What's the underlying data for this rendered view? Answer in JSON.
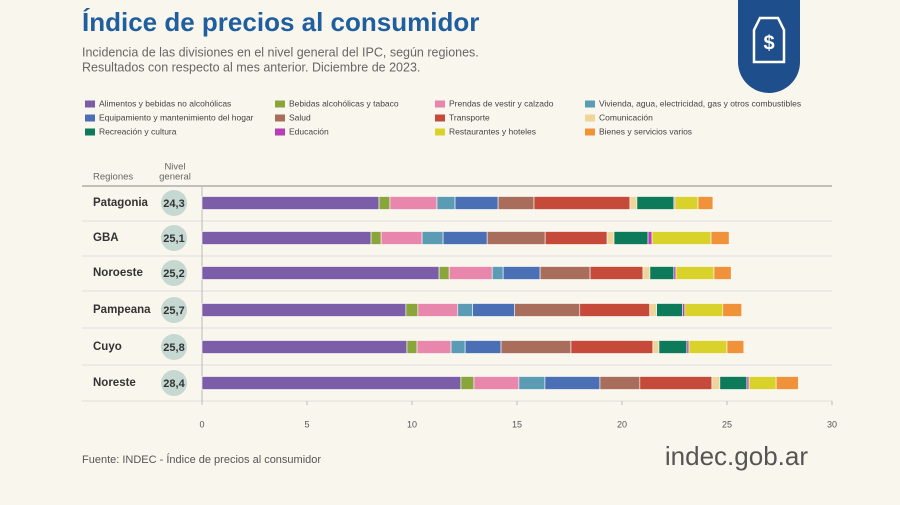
{
  "chart_data": {
    "type": "stacked_bar_horizontal",
    "title": "Índice de precios al consumidor",
    "subtitle": [
      "Incidencia de las divisiones en el nivel general del IPC, según regiones.",
      "Resultados con respecto al mes anterior. Diciembre de 2023."
    ],
    "column_headers": {
      "region": "Regiones",
      "total": [
        "Nivel",
        "general"
      ]
    },
    "categories": [
      "Patagonia",
      "GBA",
      "Noroeste",
      "Pampeana",
      "Cuyo",
      "Noreste"
    ],
    "totals": [
      24.3,
      25.1,
      25.2,
      25.7,
      25.8,
      28.4
    ],
    "total_labels": [
      "24,3",
      "25,1",
      "25,2",
      "25,7",
      "25,8",
      "28,4"
    ],
    "series": [
      {
        "name": "Alimentos y bebidas no alcohólicas",
        "color": "#7b5ea7",
        "values": [
          8.43,
          8.05,
          11.29,
          9.71,
          9.76,
          12.33
        ]
      },
      {
        "name": "Bebidas alcohólicas y tabaco",
        "color": "#8aa63a",
        "values": [
          0.52,
          0.48,
          0.48,
          0.57,
          0.48,
          0.62
        ]
      },
      {
        "name": "Prendas de vestir y calzado",
        "color": "#e986ac",
        "values": [
          2.24,
          1.95,
          2.05,
          1.9,
          1.62,
          2.14
        ]
      },
      {
        "name": "Vivienda, agua, electricidad, gas y otros combustibles",
        "color": "#5b9cb4",
        "values": [
          0.86,
          1.0,
          0.52,
          0.71,
          0.67,
          1.24
        ]
      },
      {
        "name": "Equipamiento y mantenimiento del hogar",
        "color": "#4a6fb5",
        "values": [
          2.05,
          2.1,
          1.76,
          2.0,
          1.71,
          2.62
        ]
      },
      {
        "name": "Salud",
        "color": "#a96e5b",
        "values": [
          1.71,
          2.76,
          2.38,
          3.1,
          3.33,
          1.9
        ]
      },
      {
        "name": "Transporte",
        "color": "#c54a3a",
        "values": [
          4.57,
          2.95,
          2.52,
          3.33,
          3.9,
          3.43
        ]
      },
      {
        "name": "Comunicación",
        "color": "#f0d59a",
        "values": [
          0.33,
          0.33,
          0.33,
          0.33,
          0.29,
          0.38
        ]
      },
      {
        "name": "Recreación y cultura",
        "color": "#0d7a5a",
        "values": [
          1.76,
          1.62,
          1.14,
          1.24,
          1.33,
          1.29
        ]
      },
      {
        "name": "Educación",
        "color": "#b93fb8",
        "values": [
          0.05,
          0.19,
          0.1,
          0.1,
          0.1,
          0.1
        ]
      },
      {
        "name": "Restaurantes y hoteles",
        "color": "#d9d22a",
        "values": [
          1.1,
          2.81,
          1.81,
          1.81,
          1.81,
          1.29
        ]
      },
      {
        "name": "Bienes y servicios varios",
        "color": "#f0923a",
        "values": [
          0.71,
          0.86,
          0.82,
          0.9,
          0.8,
          1.06
        ]
      }
    ],
    "xlim": [
      0,
      30
    ],
    "xticks": [
      0,
      5,
      10,
      15,
      20,
      25,
      30
    ],
    "source": "Fuente: INDEC - Índice de precios al consumidor",
    "logo": "indec.gob.ar"
  }
}
